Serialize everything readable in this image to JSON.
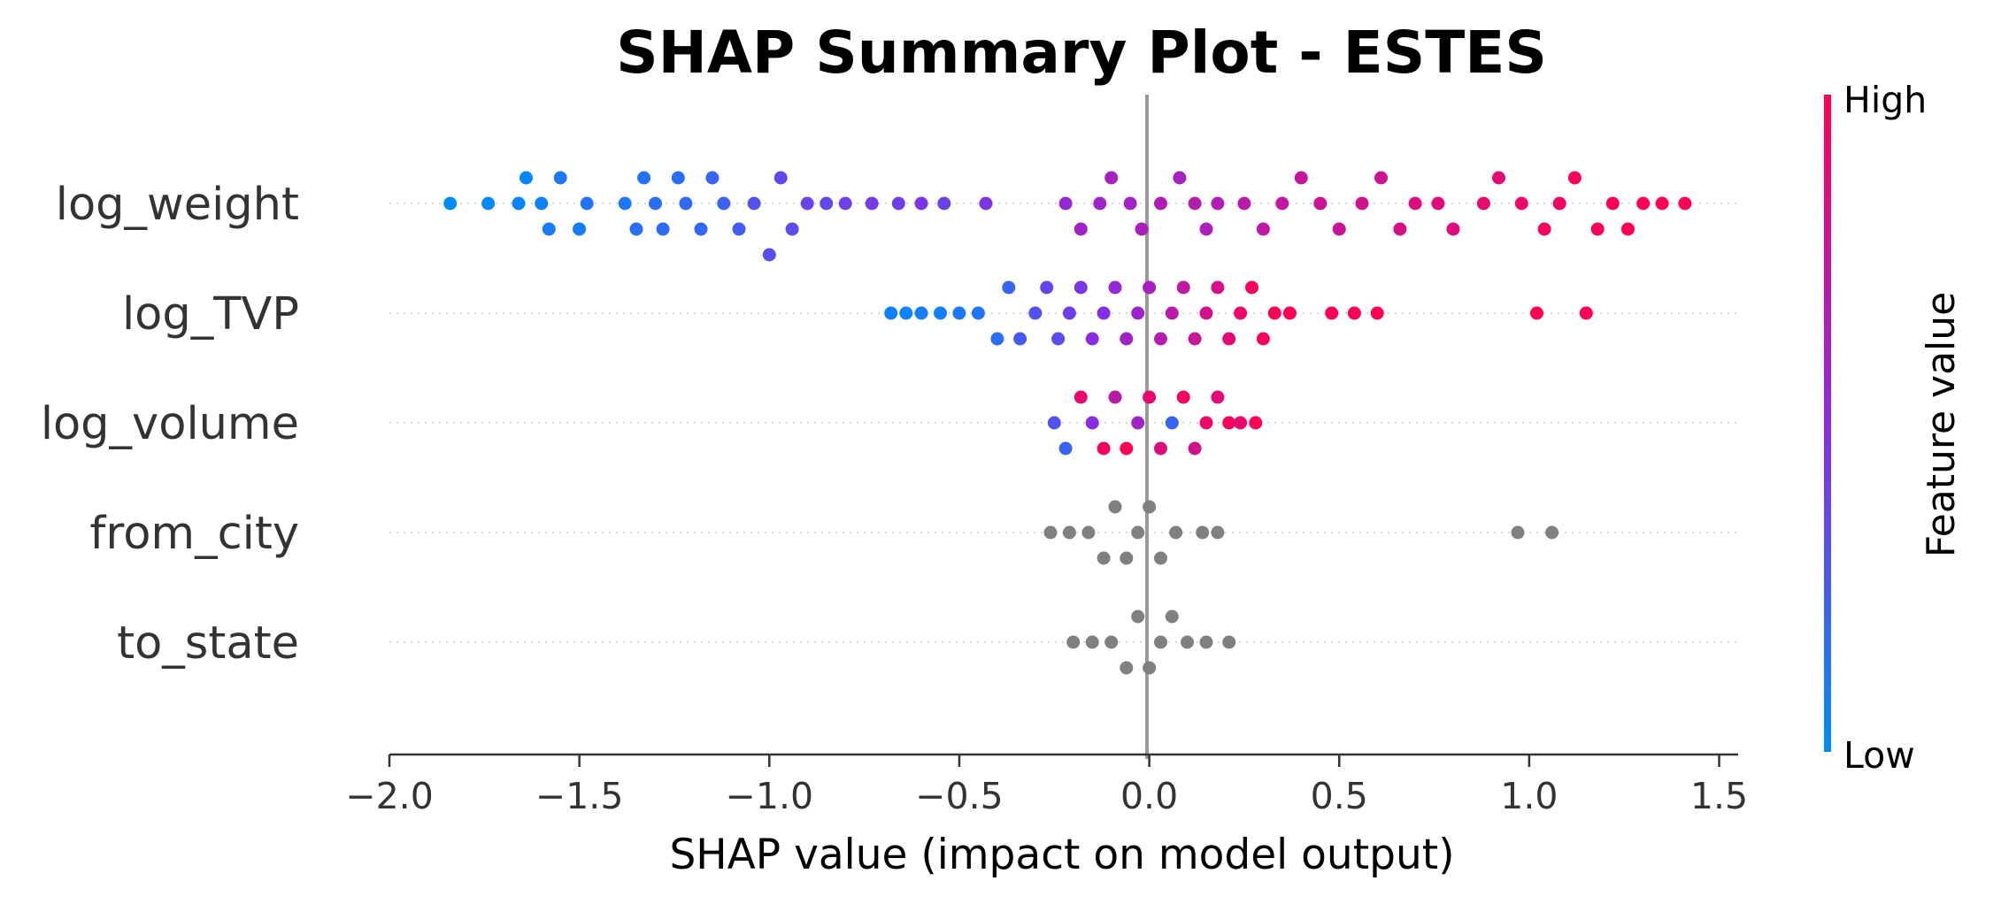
{
  "chart_data": {
    "type": "scatter",
    "title": "SHAP Summary Plot - ESTES",
    "xlabel": "SHAP value (impact on model output)",
    "xlim": [
      -2.0,
      1.55
    ],
    "xticks": [
      -2.0,
      -1.5,
      -1.0,
      -0.5,
      0.0,
      0.5,
      1.0,
      1.5
    ],
    "xtick_labels": [
      "−2.0",
      "−1.5",
      "−1.0",
      "−0.5",
      "0.0",
      "0.5",
      "1.0",
      "1.5"
    ],
    "features": [
      "log_weight",
      "log_TVP",
      "log_volume",
      "from_city",
      "to_state"
    ],
    "colorbar": {
      "label": "Feature value",
      "high_label": "High",
      "low_label": "Low",
      "high_color": "#ff0052",
      "low_color": "#008bfb",
      "missing_color": "#808080"
    },
    "series": [
      {
        "feature": "log_weight",
        "colored": true,
        "points": [
          [
            -1.84,
            0.0,
            0.0
          ],
          [
            -1.74,
            0.0,
            0.02
          ],
          [
            -1.66,
            0.0,
            0.04
          ],
          [
            -1.64,
            -0.01,
            0.03
          ],
          [
            -1.6,
            0.0,
            0.05
          ],
          [
            -1.58,
            0.01,
            0.08
          ],
          [
            -1.55,
            -0.01,
            0.1
          ],
          [
            -1.5,
            0.01,
            0.08
          ],
          [
            -1.48,
            0.0,
            0.12
          ],
          [
            -1.38,
            0.0,
            0.1
          ],
          [
            -1.35,
            0.01,
            0.14
          ],
          [
            -1.33,
            -0.01,
            0.12
          ],
          [
            -1.3,
            0.0,
            0.15
          ],
          [
            -1.28,
            0.01,
            0.16
          ],
          [
            -1.24,
            -0.01,
            0.14
          ],
          [
            -1.22,
            0.0,
            0.18
          ],
          [
            -1.18,
            0.01,
            0.17
          ],
          [
            -1.15,
            -0.01,
            0.2
          ],
          [
            -1.12,
            0.0,
            0.22
          ],
          [
            -1.08,
            0.01,
            0.25
          ],
          [
            -1.04,
            0.0,
            0.3
          ],
          [
            -1.0,
            0.02,
            0.32
          ],
          [
            -0.97,
            -0.01,
            0.35
          ],
          [
            -0.94,
            0.01,
            0.33
          ],
          [
            -0.9,
            0.0,
            0.38
          ],
          [
            -0.85,
            0.0,
            0.35
          ],
          [
            -0.8,
            0.0,
            0.4
          ],
          [
            -0.73,
            0.0,
            0.42
          ],
          [
            -0.66,
            0.0,
            0.4
          ],
          [
            -0.6,
            0.0,
            0.45
          ],
          [
            -0.54,
            0.0,
            0.38
          ],
          [
            -0.43,
            0.0,
            0.45
          ],
          [
            -0.22,
            0.0,
            0.55
          ],
          [
            -0.18,
            0.01,
            0.6
          ],
          [
            -0.13,
            0.0,
            0.58
          ],
          [
            -0.1,
            -0.01,
            0.62
          ],
          [
            -0.05,
            0.0,
            0.6
          ],
          [
            -0.02,
            0.01,
            0.64
          ],
          [
            0.03,
            0.0,
            0.66
          ],
          [
            0.08,
            -0.01,
            0.62
          ],
          [
            0.12,
            0.0,
            0.68
          ],
          [
            0.15,
            0.01,
            0.64
          ],
          [
            0.18,
            0.0,
            0.66
          ],
          [
            0.25,
            0.0,
            0.7
          ],
          [
            0.3,
            0.01,
            0.72
          ],
          [
            0.35,
            0.0,
            0.74
          ],
          [
            0.4,
            -0.01,
            0.75
          ],
          [
            0.45,
            0.0,
            0.78
          ],
          [
            0.5,
            0.01,
            0.76
          ],
          [
            0.56,
            0.0,
            0.8
          ],
          [
            0.61,
            -0.01,
            0.78
          ],
          [
            0.66,
            0.01,
            0.82
          ],
          [
            0.7,
            0.0,
            0.84
          ],
          [
            0.76,
            0.0,
            0.86
          ],
          [
            0.8,
            0.01,
            0.85
          ],
          [
            0.88,
            0.0,
            0.9
          ],
          [
            0.92,
            -0.01,
            0.88
          ],
          [
            0.98,
            0.0,
            0.92
          ],
          [
            1.04,
            0.01,
            0.95
          ],
          [
            1.08,
            0.0,
            0.94
          ],
          [
            1.12,
            -0.01,
            0.97
          ],
          [
            1.18,
            0.01,
            0.96
          ],
          [
            1.22,
            0.0,
            0.98
          ],
          [
            1.26,
            0.01,
            1.0
          ],
          [
            1.3,
            0.0,
            0.99
          ],
          [
            1.35,
            0.0,
            1.0
          ],
          [
            1.41,
            0.0,
            1.0
          ]
        ]
      },
      {
        "feature": "log_TVP",
        "colored": true,
        "points": [
          [
            -0.68,
            0.0,
            0.05
          ],
          [
            -0.64,
            0.0,
            0.04
          ],
          [
            -0.6,
            0.0,
            0.08
          ],
          [
            -0.55,
            0.0,
            0.06
          ],
          [
            -0.5,
            0.0,
            0.1
          ],
          [
            -0.45,
            0.0,
            0.12
          ],
          [
            -0.4,
            0.01,
            0.15
          ],
          [
            -0.37,
            -0.01,
            0.2
          ],
          [
            -0.34,
            0.01,
            0.25
          ],
          [
            -0.3,
            0.0,
            0.3
          ],
          [
            -0.27,
            -0.01,
            0.35
          ],
          [
            -0.24,
            0.01,
            0.32
          ],
          [
            -0.21,
            0.0,
            0.4
          ],
          [
            -0.18,
            -0.01,
            0.45
          ],
          [
            -0.15,
            0.01,
            0.5
          ],
          [
            -0.12,
            0.0,
            0.48
          ],
          [
            -0.09,
            -0.01,
            0.55
          ],
          [
            -0.06,
            0.01,
            0.6
          ],
          [
            -0.03,
            0.0,
            0.58
          ],
          [
            0.0,
            -0.01,
            0.62
          ],
          [
            0.03,
            0.01,
            0.68
          ],
          [
            0.06,
            0.0,
            0.7
          ],
          [
            0.09,
            -0.01,
            0.72
          ],
          [
            0.12,
            0.01,
            0.76
          ],
          [
            0.15,
            0.0,
            0.8
          ],
          [
            0.18,
            -0.01,
            0.82
          ],
          [
            0.21,
            0.01,
            0.88
          ],
          [
            0.24,
            0.0,
            0.92
          ],
          [
            0.27,
            -0.01,
            0.95
          ],
          [
            0.3,
            0.01,
            0.96
          ],
          [
            0.33,
            0.0,
            0.98
          ],
          [
            0.37,
            0.0,
            1.0
          ],
          [
            0.48,
            0.0,
            1.0
          ],
          [
            0.54,
            0.0,
            0.99
          ],
          [
            0.6,
            0.0,
            1.0
          ],
          [
            1.02,
            0.0,
            1.0
          ],
          [
            1.15,
            0.0,
            1.0
          ]
        ]
      },
      {
        "feature": "log_volume",
        "colored": true,
        "points": [
          [
            -0.25,
            0.0,
            0.3
          ],
          [
            -0.22,
            0.01,
            0.2
          ],
          [
            -0.18,
            -0.01,
            0.9
          ],
          [
            -0.15,
            0.0,
            0.5
          ],
          [
            -0.12,
            0.01,
            0.95
          ],
          [
            -0.09,
            -0.01,
            0.7
          ],
          [
            -0.06,
            0.01,
            0.98
          ],
          [
            -0.03,
            0.0,
            0.6
          ],
          [
            0.0,
            -0.01,
            0.9
          ],
          [
            0.03,
            0.01,
            0.85
          ],
          [
            0.06,
            0.0,
            0.2
          ],
          [
            0.09,
            -0.01,
            0.95
          ],
          [
            0.12,
            0.01,
            0.8
          ],
          [
            0.15,
            0.0,
            0.92
          ],
          [
            0.18,
            -0.01,
            0.88
          ],
          [
            0.21,
            0.0,
            0.96
          ],
          [
            0.24,
            0.0,
            0.9
          ],
          [
            0.28,
            0.0,
            1.0
          ]
        ]
      },
      {
        "feature": "from_city",
        "colored": false,
        "points": [
          [
            -0.26,
            0.0,
            null
          ],
          [
            -0.21,
            0.0,
            null
          ],
          [
            -0.16,
            0.0,
            null
          ],
          [
            -0.12,
            0.01,
            null
          ],
          [
            -0.09,
            -0.01,
            null
          ],
          [
            -0.06,
            0.01,
            null
          ],
          [
            -0.03,
            0.0,
            null
          ],
          [
            0.0,
            -0.01,
            null
          ],
          [
            0.03,
            0.01,
            null
          ],
          [
            0.07,
            0.0,
            null
          ],
          [
            0.14,
            0.0,
            null
          ],
          [
            0.18,
            0.0,
            null
          ],
          [
            0.97,
            0.0,
            null
          ],
          [
            1.06,
            0.0,
            null
          ]
        ]
      },
      {
        "feature": "to_state",
        "colored": false,
        "points": [
          [
            -0.2,
            0.0,
            null
          ],
          [
            -0.15,
            0.0,
            null
          ],
          [
            -0.1,
            0.0,
            null
          ],
          [
            -0.06,
            0.01,
            null
          ],
          [
            -0.03,
            -0.01,
            null
          ],
          [
            0.0,
            0.01,
            null
          ],
          [
            0.03,
            0.0,
            null
          ],
          [
            0.06,
            -0.01,
            null
          ],
          [
            0.1,
            0.0,
            null
          ],
          [
            0.15,
            0.0,
            null
          ],
          [
            0.21,
            0.0,
            null
          ]
        ]
      }
    ]
  }
}
